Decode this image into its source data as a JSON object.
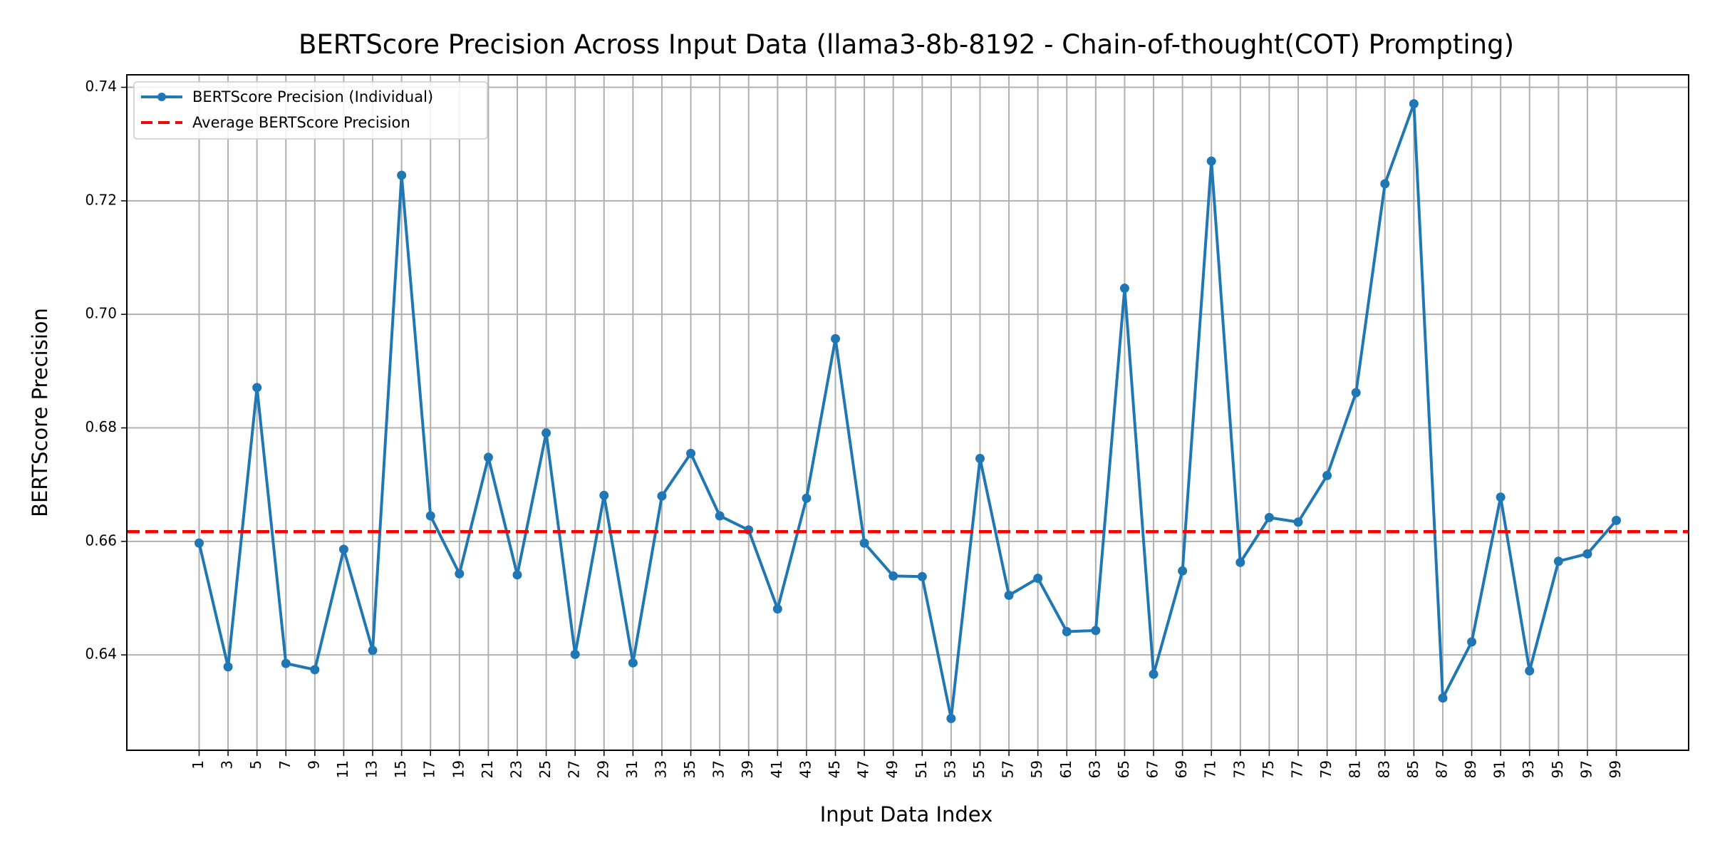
{
  "chart_data": {
    "type": "line",
    "title": "BERTScore Precision Across Input Data (llama3-8b-8192 - Chain-of-thought(COT) Prompting)",
    "xlabel": "Input Data Index",
    "ylabel": "BERTScore Precision",
    "x": [
      1,
      3,
      5,
      7,
      9,
      11,
      13,
      15,
      17,
      19,
      21,
      23,
      25,
      27,
      29,
      31,
      33,
      35,
      37,
      39,
      41,
      43,
      45,
      47,
      49,
      51,
      53,
      55,
      57,
      59,
      61,
      63,
      65,
      67,
      69,
      71,
      73,
      75,
      77,
      79,
      81,
      83,
      85,
      87,
      89,
      91,
      93,
      95,
      97,
      99
    ],
    "x_ticks": [
      "1",
      "3",
      "5",
      "7",
      "9",
      "11",
      "13",
      "15",
      "17",
      "19",
      "21",
      "23",
      "25",
      "27",
      "29",
      "31",
      "33",
      "35",
      "37",
      "39",
      "41",
      "43",
      "45",
      "47",
      "49",
      "51",
      "53",
      "55",
      "57",
      "59",
      "61",
      "63",
      "65",
      "67",
      "69",
      "71",
      "73",
      "75",
      "77",
      "79",
      "81",
      "83",
      "85",
      "87",
      "89",
      "91",
      "93",
      "95",
      "97",
      "99"
    ],
    "y_ticks": [
      "0.64",
      "0.66",
      "0.68",
      "0.70",
      "0.72",
      "0.74"
    ],
    "ylim": [
      0.6232,
      0.7422
    ],
    "xlim": [
      -4,
      104
    ],
    "grid": true,
    "legend_position": "top-left",
    "series": [
      {
        "name": "BERTScore Precision (Individual)",
        "color": "#1f77b4",
        "style": "solid-with-markers",
        "values": [
          0.6597,
          0.6379,
          0.6871,
          0.6385,
          0.6374,
          0.6586,
          0.6408,
          0.7245,
          0.6645,
          0.6543,
          0.6748,
          0.6541,
          0.6791,
          0.6401,
          0.6681,
          0.6386,
          0.668,
          0.6755,
          0.6645,
          0.662,
          0.6481,
          0.6676,
          0.6957,
          0.6597,
          0.6539,
          0.6538,
          0.6288,
          0.6746,
          0.6505,
          0.6535,
          0.6441,
          0.6443,
          0.7046,
          0.6366,
          0.6548,
          0.727,
          0.6563,
          0.6642,
          0.6634,
          0.6716,
          0.6862,
          0.723,
          0.7371,
          0.6324,
          0.6423,
          0.6678,
          0.6372,
          0.6565,
          0.6578,
          0.6637
        ]
      },
      {
        "name": "Average BERTScore Precision",
        "color": "#ff0000",
        "style": "dashed",
        "value": 0.6617
      }
    ]
  }
}
